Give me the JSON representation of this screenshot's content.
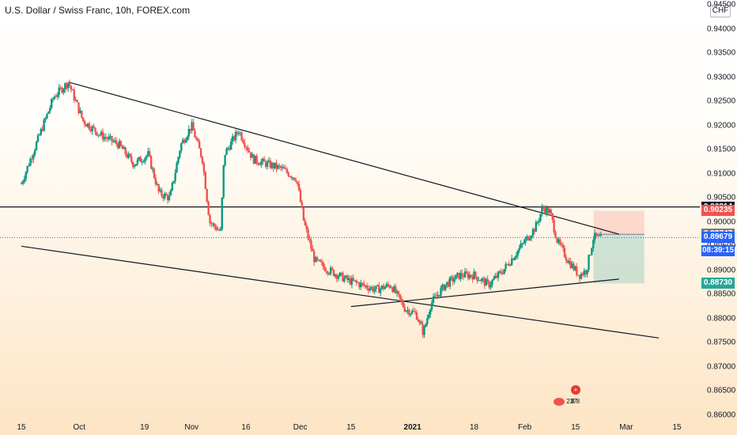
{
  "header": {
    "title": "U.S. Dollar / Swiss Franc, 10h, FOREX.com",
    "currency": "CHF"
  },
  "price_axis": [
    "0.94500",
    "0.94000",
    "0.93500",
    "0.93000",
    "0.92500",
    "0.92000",
    "0.91500",
    "0.91000",
    "0.90500",
    "0.90000",
    "0.89500",
    "0.89000",
    "0.88500",
    "0.88000",
    "0.87500",
    "0.87000",
    "0.86500",
    "0.86000"
  ],
  "time_axis": [
    {
      "label": "15",
      "bold": false
    },
    {
      "label": "Oct",
      "bold": false
    },
    {
      "label": "19",
      "bold": false
    },
    {
      "label": "Nov",
      "bold": false
    },
    {
      "label": "16",
      "bold": false
    },
    {
      "label": "Dec",
      "bold": false
    },
    {
      "label": "15",
      "bold": false
    },
    {
      "label": "2021",
      "bold": true
    },
    {
      "label": "18",
      "bold": false
    },
    {
      "label": "Feb",
      "bold": false
    },
    {
      "label": "15",
      "bold": false
    },
    {
      "label": "Mar",
      "bold": false
    },
    {
      "label": "15",
      "bold": false
    }
  ],
  "price_tags": [
    {
      "label": "0.90314",
      "bg": "#131722"
    },
    {
      "label": "0.90235",
      "bg": "#ef5350"
    },
    {
      "label": "0.89747",
      "bg": "#787b86"
    },
    {
      "label": "0.89679",
      "bg": "#2962ff"
    },
    {
      "label": "08:39:15",
      "bg": "#2962ff"
    },
    {
      "label": "0.88730",
      "bg": "#26a69a"
    }
  ],
  "badges": {
    "left": "237",
    "right": "8 8"
  },
  "colors": {
    "up": "#26a69a",
    "down": "#ef5350",
    "up_alt": "#089981",
    "line": "#131722"
  },
  "chart_data": {
    "type": "candlestick",
    "symbol": "USDCHF",
    "ylim": [
      0.86,
      0.946
    ],
    "close_path": [
      [
        "2020-09-15",
        0.908
      ],
      [
        "2020-09-20",
        0.918
      ],
      [
        "2020-09-24",
        0.926
      ],
      [
        "2020-09-28",
        0.929
      ],
      [
        "2020-10-02",
        0.921
      ],
      [
        "2020-10-07",
        0.918
      ],
      [
        "2020-10-12",
        0.916
      ],
      [
        "2020-10-16",
        0.912
      ],
      [
        "2020-10-20",
        0.914
      ],
      [
        "2020-10-23",
        0.906
      ],
      [
        "2020-10-26",
        0.905
      ],
      [
        "2020-10-29",
        0.916
      ],
      [
        "2020-11-01",
        0.92
      ],
      [
        "2020-11-04",
        0.913
      ],
      [
        "2020-11-06",
        0.9
      ],
      [
        "2020-11-09",
        0.898
      ],
      [
        "2020-11-10",
        0.914
      ],
      [
        "2020-11-14",
        0.919
      ],
      [
        "2020-11-18",
        0.913
      ],
      [
        "2020-11-22",
        0.912
      ],
      [
        "2020-11-26",
        0.911
      ],
      [
        "2020-11-30",
        0.909
      ],
      [
        "2020-12-02",
        0.9
      ],
      [
        "2020-12-05",
        0.892
      ],
      [
        "2020-12-09",
        0.89
      ],
      [
        "2020-12-14",
        0.888
      ],
      [
        "2020-12-18",
        0.887
      ],
      [
        "2020-12-22",
        0.886
      ],
      [
        "2020-12-26",
        0.887
      ],
      [
        "2020-12-30",
        0.882
      ],
      [
        "2021-01-02",
        0.881
      ],
      [
        "2021-01-04",
        0.877
      ],
      [
        "2021-01-06",
        0.883
      ],
      [
        "2021-01-10",
        0.887
      ],
      [
        "2021-01-14",
        0.889
      ],
      [
        "2021-01-18",
        0.889
      ],
      [
        "2021-01-22",
        0.887
      ],
      [
        "2021-01-26",
        0.89
      ],
      [
        "2021-01-30",
        0.894
      ],
      [
        "2021-02-01",
        0.896
      ],
      [
        "2021-02-04",
        0.899
      ],
      [
        "2021-02-06",
        0.903
      ],
      [
        "2021-02-08",
        0.902
      ],
      [
        "2021-02-10",
        0.896
      ],
      [
        "2021-02-13",
        0.892
      ],
      [
        "2021-02-16",
        0.889
      ],
      [
        "2021-02-18",
        0.89
      ],
      [
        "2021-02-20",
        0.897
      ],
      [
        "2021-02-22",
        0.8965
      ]
    ],
    "horizontal_levels": [
      0.90314
    ],
    "trade_box": {
      "stop": 0.90235,
      "entry": 0.89747,
      "target": 0.8873
    }
  }
}
